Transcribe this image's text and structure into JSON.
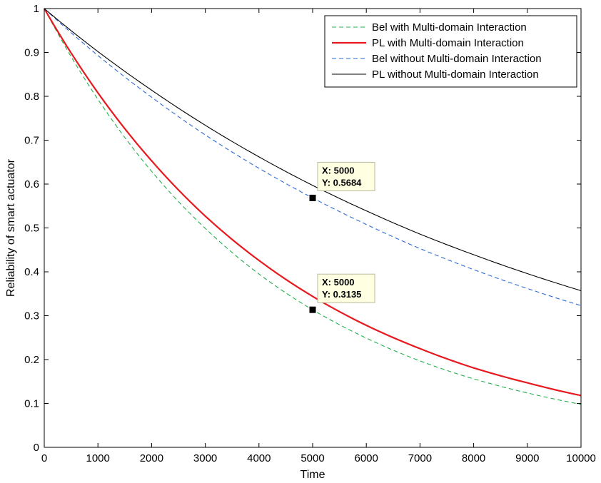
{
  "chart_data": {
    "type": "line",
    "xlabel": "Time",
    "ylabel": "Reliability of smart actuator",
    "xlim": [
      0,
      10000
    ],
    "ylim": [
      0,
      1
    ],
    "xticks": [
      0,
      1000,
      2000,
      3000,
      4000,
      5000,
      6000,
      7000,
      8000,
      9000,
      10000
    ],
    "yticks": [
      0,
      0.1,
      0.2,
      0.3,
      0.4,
      0.5,
      0.6,
      0.7,
      0.8,
      0.9,
      1
    ],
    "xtick_labels": [
      "0",
      "1000",
      "2000",
      "3000",
      "4000",
      "5000",
      "6000",
      "7000",
      "8000",
      "9000",
      "10000"
    ],
    "ytick_labels": [
      "0",
      "0.1",
      "0.2",
      "0.3",
      "0.4",
      "0.5",
      "0.6",
      "0.7",
      "0.8",
      "0.9",
      "1"
    ],
    "grid": false,
    "legend_position": "top-right",
    "x": [
      0,
      1000,
      2000,
      3000,
      4000,
      5000,
      6000,
      7000,
      8000,
      9000,
      10000
    ],
    "series": [
      {
        "name": "Bel with Multi-domain Interaction",
        "color": "#22b14c",
        "style": "dashed",
        "values": [
          1,
          0.793,
          0.629,
          0.499,
          0.395,
          0.3135,
          0.249,
          0.197,
          0.156,
          0.124,
          0.098
        ]
      },
      {
        "name": "PL with Multi-domain Interaction",
        "color": "#e8191e",
        "style": "solid",
        "values": [
          1,
          0.808,
          0.653,
          0.527,
          0.426,
          0.344,
          0.278,
          0.225,
          0.181,
          0.147,
          0.118
        ]
      },
      {
        "name": "Bel without Multi-domain Interaction",
        "color": "#2e6ad8",
        "style": "dashed",
        "values": [
          1,
          0.893,
          0.798,
          0.712,
          0.636,
          0.5684,
          0.508,
          0.453,
          0.405,
          0.362,
          0.323
        ]
      },
      {
        "name": "PL without Multi-domain Interaction",
        "color": "#000000",
        "style": "solid",
        "values": [
          1,
          0.902,
          0.814,
          0.734,
          0.662,
          0.597,
          0.539,
          0.486,
          0.439,
          0.396,
          0.357
        ]
      }
    ],
    "annotations": [
      {
        "x": 5000,
        "y": 0.5684,
        "line1": "X: 5000",
        "line2": "Y: 0.5684"
      },
      {
        "x": 5000,
        "y": 0.3135,
        "line1": "X: 5000",
        "line2": "Y: 0.3135"
      }
    ]
  }
}
